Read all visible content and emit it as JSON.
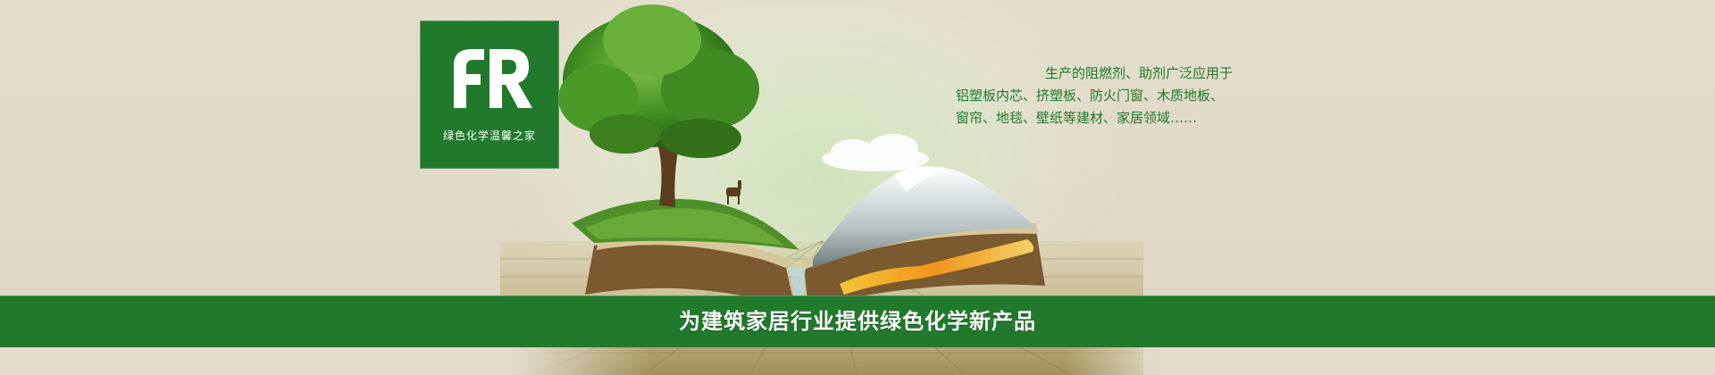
{
  "logo": {
    "mark": "fR",
    "slogan": "绿色化学温馨之家"
  },
  "description": {
    "lines": [
      "生产的阻燃剂、助剂广泛应用于",
      "铝塑板内芯、挤塑板、防火门窗、木质地板、",
      "窗帘、地毯、壁纸等建材、家居领域……"
    ]
  },
  "band": {
    "text": "为建筑家居行业提供绿色化学新产品"
  },
  "colors": {
    "brand_green": "#217a2c",
    "background": "#e2dccb",
    "text_on_green": "#ffffff"
  }
}
